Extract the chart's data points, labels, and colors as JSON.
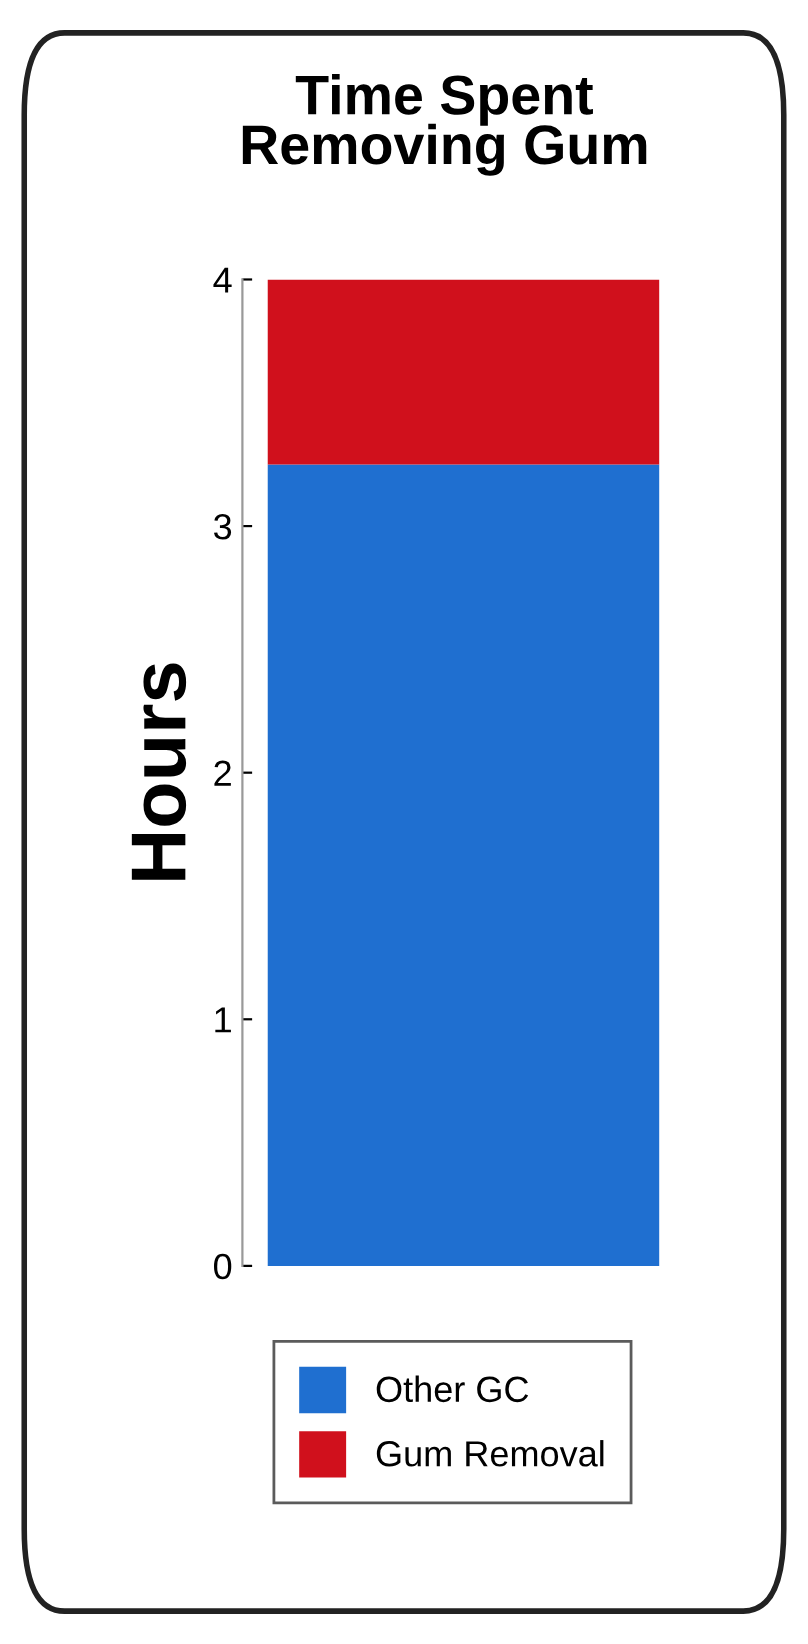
{
  "chart_data": {
    "type": "bar",
    "title": "Time Spent\nRemoving Gum",
    "ylabel": "Hours",
    "categories": [
      null
    ],
    "stacked": true,
    "series": [
      {
        "name": "Other GC",
        "color": "#1f6fd0",
        "values": [
          3.25
        ]
      },
      {
        "name": "Gum Removal",
        "color": "#d0101c",
        "values": [
          0.75
        ]
      }
    ],
    "ylim": [
      0,
      4
    ],
    "yticks": [
      0,
      1,
      2,
      3,
      4
    ],
    "grid": false,
    "legend": "bottom"
  }
}
